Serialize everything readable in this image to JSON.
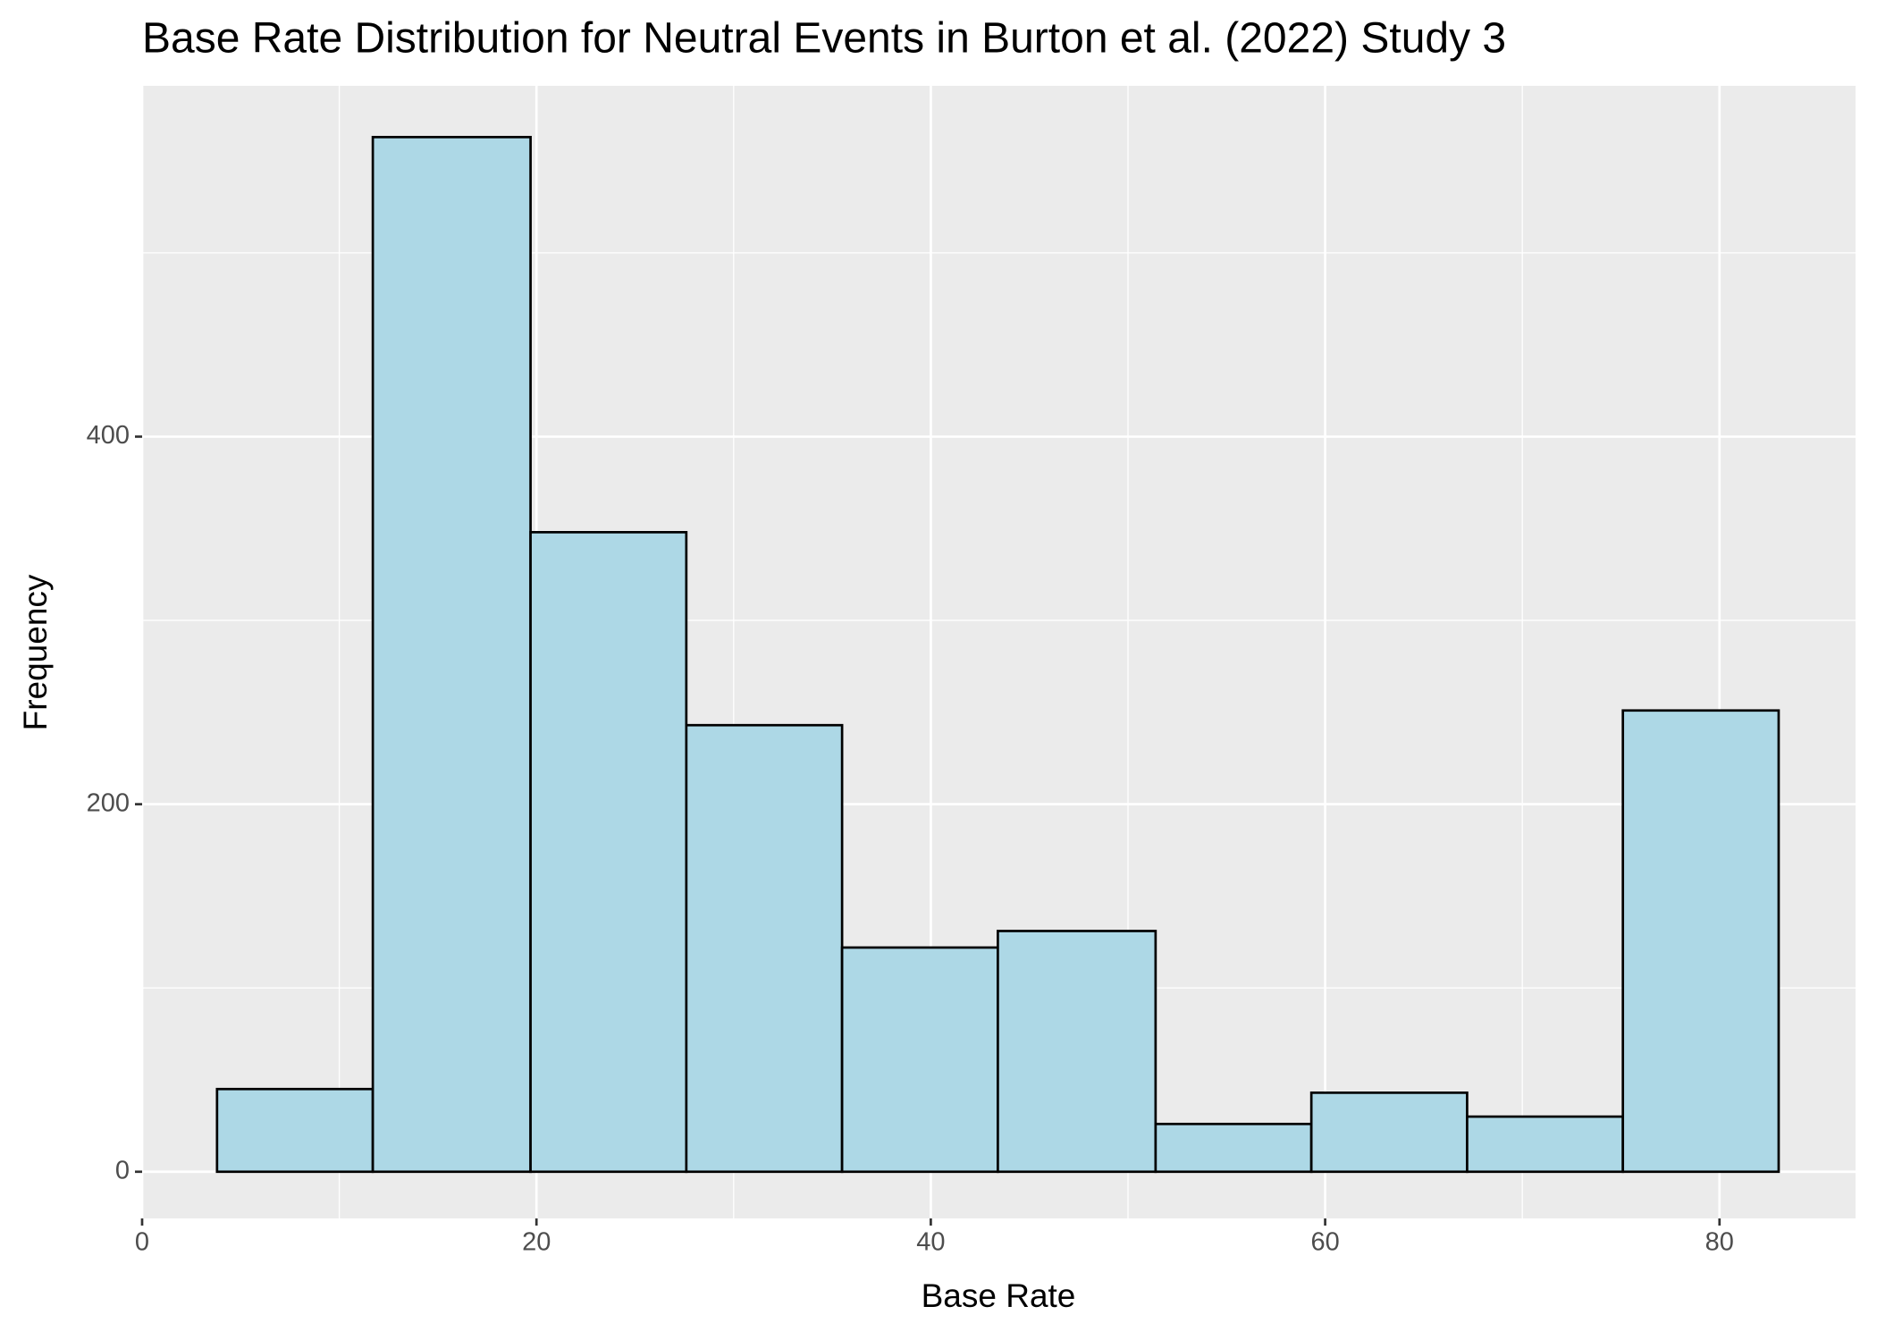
{
  "chart_data": {
    "type": "histogram",
    "title": "Base Rate Distribution for Neutral Events in Burton et al. (2022) Study 3",
    "x_label": "Base Rate",
    "y_label": "Frequency",
    "bins": [
      3.8,
      11.7,
      19.7,
      27.6,
      35.5,
      43.4,
      51.4,
      59.3,
      67.2,
      75.1,
      83.0
    ],
    "values": [
      45,
      563,
      348,
      243,
      122,
      131,
      26,
      43,
      30,
      251
    ],
    "color": "#add8e6",
    "edgecolor": "#000000",
    "xlim": [
      0,
      86.9
    ],
    "ylim": [
      -25.4,
      590.9
    ],
    "xticks": [
      0,
      20,
      40,
      60,
      80
    ],
    "yticks": [
      0,
      200,
      400
    ],
    "x_minor_grid": [
      10,
      30,
      50,
      70
    ],
    "y_minor_grid": [
      100,
      300,
      500
    ],
    "grid": true
  }
}
